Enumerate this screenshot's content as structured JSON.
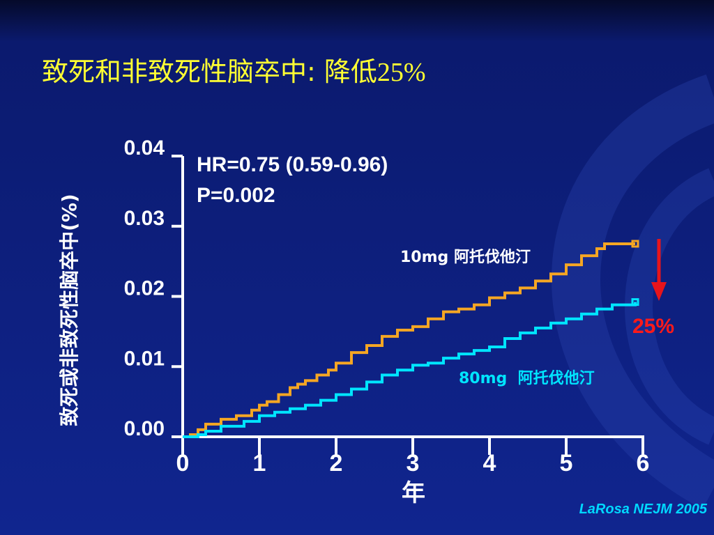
{
  "slide": {
    "title_text": "致死和非致死性脑卒中: 降低",
    "title_pct": "25%",
    "citation": "LaRosa NEJM 2005"
  },
  "colors": {
    "accent_title": "#ffff33",
    "series_10mg": "#f5a623",
    "series_80mg": "#00e5ff",
    "arrow": "#e8141b"
  },
  "chart_data": {
    "type": "line",
    "ylabel": "致死或非致死性脑卒中(%)",
    "xlabel": "年",
    "ylim": [
      0.0,
      0.04
    ],
    "xlim": [
      0,
      6
    ],
    "xticks": [
      "0",
      "1",
      "2",
      "3",
      "4",
      "5",
      "6"
    ],
    "yticks": [
      "0.00",
      "0.01",
      "0.02",
      "0.03",
      "0.04"
    ],
    "annotations": {
      "hr": "HR=0.75 (0.59-0.96)",
      "p": "P=0.002",
      "reduction": "25%"
    },
    "series": [
      {
        "name": "10mg 阿托伐他汀",
        "x": [
          0.0,
          0.1,
          0.2,
          0.3,
          0.5,
          0.7,
          0.9,
          1.0,
          1.1,
          1.25,
          1.4,
          1.5,
          1.6,
          1.75,
          1.9,
          2.0,
          2.2,
          2.4,
          2.6,
          2.8,
          3.0,
          3.2,
          3.4,
          3.6,
          3.8,
          4.0,
          4.2,
          4.4,
          4.6,
          4.8,
          5.0,
          5.2,
          5.4,
          5.5,
          5.9
        ],
        "y": [
          0.0,
          0.0003,
          0.001,
          0.0018,
          0.0025,
          0.003,
          0.0038,
          0.0045,
          0.005,
          0.006,
          0.007,
          0.0075,
          0.008,
          0.0088,
          0.0095,
          0.0105,
          0.012,
          0.013,
          0.0143,
          0.0152,
          0.0157,
          0.0168,
          0.0178,
          0.0182,
          0.0188,
          0.0198,
          0.0205,
          0.0212,
          0.0222,
          0.0232,
          0.0245,
          0.0258,
          0.0268,
          0.0275,
          0.0275
        ]
      },
      {
        "name": "80mg  阿托伐他汀",
        "x": [
          0.0,
          0.2,
          0.3,
          0.5,
          0.8,
          1.0,
          1.2,
          1.4,
          1.6,
          1.8,
          2.0,
          2.2,
          2.4,
          2.6,
          2.8,
          3.0,
          3.2,
          3.4,
          3.6,
          3.8,
          4.0,
          4.2,
          4.4,
          4.6,
          4.8,
          5.0,
          5.2,
          5.4,
          5.6,
          5.9
        ],
        "y": [
          0.0,
          0.0003,
          0.0008,
          0.0015,
          0.0022,
          0.003,
          0.0035,
          0.004,
          0.0045,
          0.0052,
          0.006,
          0.0068,
          0.0078,
          0.0088,
          0.0095,
          0.0102,
          0.0105,
          0.0112,
          0.0118,
          0.0123,
          0.0128,
          0.014,
          0.0148,
          0.0155,
          0.0162,
          0.0168,
          0.0175,
          0.0182,
          0.0188,
          0.0192
        ]
      }
    ]
  }
}
